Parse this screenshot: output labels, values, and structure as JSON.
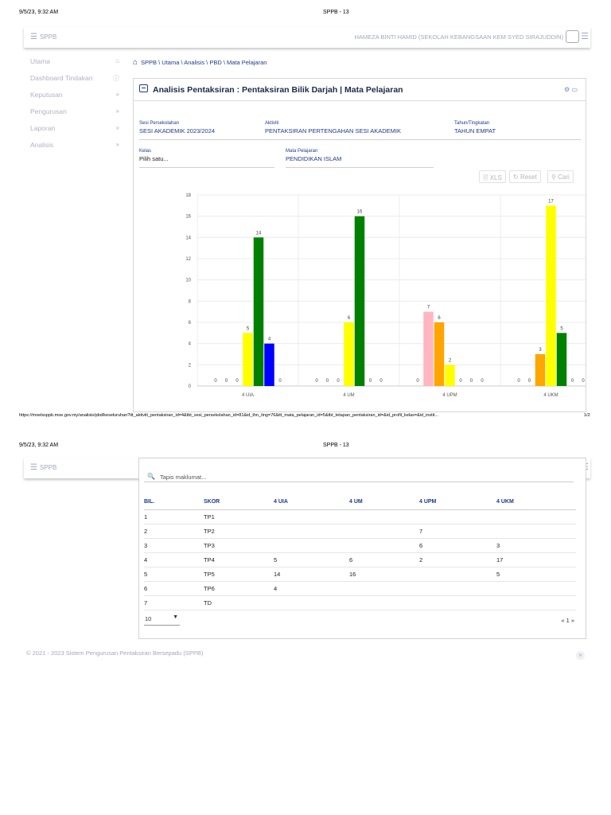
{
  "print": {
    "datetime": "9/5/23, 9:32 AM",
    "title": "SPPB - 13",
    "url": "https://moelssppb.moe.gov.my/analisis/pbd/keseluruhan?itt_aktiviti_pentaksiran_id=4&tbt_sesi_persekolahan_id=81&id_thn_ting=76&itt_mata_pelajaran_id=5&tbt_tetapan_pentaksiran_id=&id_profil_kelas=&id_instit...",
    "page": "1/2"
  },
  "topbar": {
    "brand": "SPPB",
    "menu_icon": "hamburger-icon",
    "user": "HAMEZA BINTI HAMID (SEKOLAH KEBANGSAAN KEM SYED SIRAJUDDIN)"
  },
  "sidebar": {
    "items": [
      {
        "label": "Utama",
        "icon": "home-icon"
      },
      {
        "label": "Dashboard Tindakan",
        "icon": "info-icon"
      },
      {
        "label": "Keputusan",
        "icon": "chevron-icon"
      },
      {
        "label": "Pengurusan",
        "icon": "chevron-icon"
      },
      {
        "label": "Laporan",
        "icon": "chevron-icon"
      },
      {
        "label": "Analisis",
        "icon": "chevron-icon"
      }
    ]
  },
  "breadcrumb": "SPPB \\ Utama \\ Analisis \\ PBD \\ Mata Pelajaran",
  "card": {
    "title": "Analisis Pentaksiran : Pentaksiran Bilik Darjah | Mata Pelajaran",
    "fields": {
      "sesi": {
        "label": "Sesi Persekolahan",
        "value": "SESI AKADEMIK 2023/2024"
      },
      "aktiviti": {
        "label": "Aktiviti",
        "value": "PENTAKSIRAN PERTENGAHAN  SESI AKADEMIK"
      },
      "tahun": {
        "label": "Tahun/Tingkatan",
        "value": "TAHUN EMPAT"
      },
      "kelas": {
        "label": "Kelas",
        "value": "Pilih satu..."
      },
      "mapel": {
        "label": "Mata Pelajaran",
        "value": "PENDIDIKAN ISLAM"
      }
    },
    "buttons": {
      "xls": "XLS",
      "reset": "Reset",
      "cari": "Cari"
    }
  },
  "chart_data": {
    "type": "bar",
    "categories": [
      "4 UIA",
      "4 UM",
      "4 UPM",
      "4 UKM"
    ],
    "ylim": [
      0,
      18
    ],
    "yticks": [
      0,
      2,
      4,
      6,
      8,
      10,
      12,
      14,
      16,
      18
    ],
    "grid": true,
    "series": [
      {
        "values": [
          0,
          0,
          0,
          0
        ],
        "color": "#ff0000"
      },
      {
        "values": [
          0,
          0,
          7,
          0
        ],
        "color": "#ffb6c1"
      },
      {
        "values": [
          0,
          0,
          6,
          3
        ],
        "color": "#ffa500"
      },
      {
        "values": [
          5,
          6,
          2,
          17
        ],
        "color": "#ffff00"
      },
      {
        "values": [
          14,
          16,
          0,
          5
        ],
        "color": "#008000"
      },
      {
        "values": [
          4,
          0,
          0,
          0
        ],
        "color": "#0000ff"
      },
      {
        "values": [
          0,
          0,
          0,
          0
        ],
        "color": "#800080"
      }
    ]
  },
  "table": {
    "search_placeholder": "Tapis maklumat...",
    "headers": [
      "BIL.",
      "SKOR",
      "4 UIA",
      "4 UM",
      "4 UPM",
      "4 UKM"
    ],
    "rows": [
      [
        "1",
        "TP1",
        "",
        "",
        "",
        ""
      ],
      [
        "2",
        "TP2",
        "",
        "",
        "7",
        ""
      ],
      [
        "3",
        "TP3",
        "",
        "",
        "6",
        "3"
      ],
      [
        "4",
        "TP4",
        "5",
        "6",
        "2",
        "17"
      ],
      [
        "5",
        "TP5",
        "14",
        "16",
        "",
        "5"
      ],
      [
        "6",
        "TP6",
        "4",
        "",
        "",
        ""
      ],
      [
        "7",
        "TD",
        "",
        "",
        "",
        ""
      ]
    ],
    "page_size": "10",
    "pager": "« 1 »"
  },
  "footer": "© 2021 - 2023 Sistem Pengurusan Pentaksiran Bersepadu (SPPB)"
}
